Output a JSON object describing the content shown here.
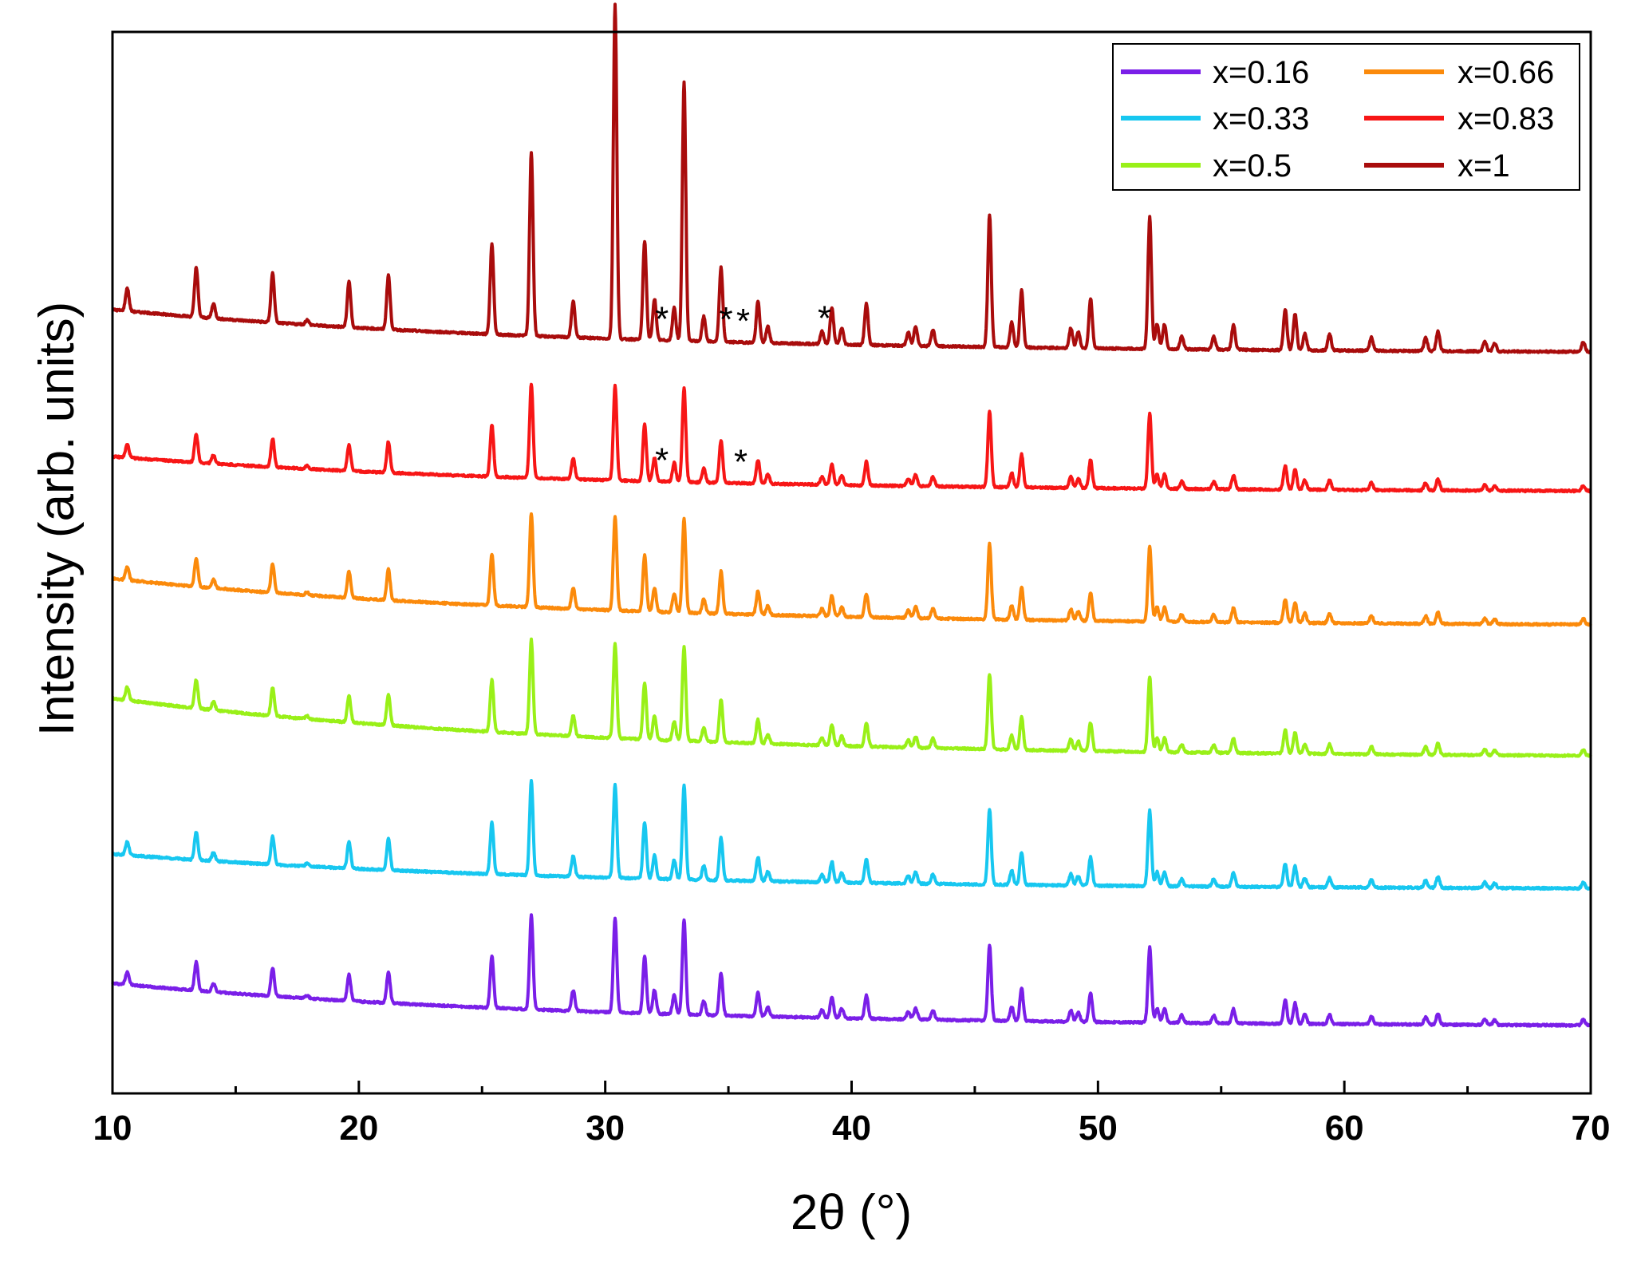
{
  "chart_data": {
    "type": "line",
    "title": "",
    "xlabel": "2θ (°)",
    "ylabel": "Intensity (arb. units)",
    "xlim": [
      10,
      70
    ],
    "xticks": [
      10,
      20,
      30,
      40,
      50,
      60,
      70
    ],
    "xtick_labels": [
      "10",
      "20",
      "30",
      "40",
      "50",
      "60",
      "70"
    ],
    "legend_position": "top-right",
    "peaks": [
      {
        "x": 10.6,
        "h": 0.14
      },
      {
        "x": 13.4,
        "h": 0.3
      },
      {
        "x": 14.1,
        "h": 0.09
      },
      {
        "x": 16.5,
        "h": 0.3
      },
      {
        "x": 17.9,
        "h": 0.03
      },
      {
        "x": 19.6,
        "h": 0.28
      },
      {
        "x": 21.2,
        "h": 0.33
      },
      {
        "x": 25.4,
        "h": 0.55
      },
      {
        "x": 27.0,
        "h": 1.0
      },
      {
        "x": 28.7,
        "h": 0.22
      },
      {
        "x": 30.4,
        "h": 1.0
      },
      {
        "x": 31.6,
        "h": 0.6
      },
      {
        "x": 32.0,
        "h": 0.25
      },
      {
        "x": 32.8,
        "h": 0.2
      },
      {
        "x": 33.2,
        "h": 1.0
      },
      {
        "x": 34.0,
        "h": 0.15
      },
      {
        "x": 34.7,
        "h": 0.45
      },
      {
        "x": 36.2,
        "h": 0.25
      },
      {
        "x": 36.6,
        "h": 0.1
      },
      {
        "x": 38.8,
        "h": 0.08
      },
      {
        "x": 39.2,
        "h": 0.22
      },
      {
        "x": 39.6,
        "h": 0.1
      },
      {
        "x": 40.6,
        "h": 0.25
      },
      {
        "x": 42.3,
        "h": 0.08
      },
      {
        "x": 42.6,
        "h": 0.12
      },
      {
        "x": 43.3,
        "h": 0.1
      },
      {
        "x": 45.6,
        "h": 0.8
      },
      {
        "x": 46.5,
        "h": 0.15
      },
      {
        "x": 46.9,
        "h": 0.35
      },
      {
        "x": 48.9,
        "h": 0.12
      },
      {
        "x": 49.2,
        "h": 0.1
      },
      {
        "x": 49.7,
        "h": 0.3
      },
      {
        "x": 52.1,
        "h": 0.8
      },
      {
        "x": 52.4,
        "h": 0.15
      },
      {
        "x": 52.7,
        "h": 0.15
      },
      {
        "x": 53.4,
        "h": 0.08
      },
      {
        "x": 54.7,
        "h": 0.08
      },
      {
        "x": 55.5,
        "h": 0.15
      },
      {
        "x": 57.6,
        "h": 0.25
      },
      {
        "x": 58.0,
        "h": 0.22
      },
      {
        "x": 58.4,
        "h": 0.1
      },
      {
        "x": 59.4,
        "h": 0.1
      },
      {
        "x": 61.1,
        "h": 0.08
      },
      {
        "x": 63.3,
        "h": 0.08
      },
      {
        "x": 63.8,
        "h": 0.12
      },
      {
        "x": 65.7,
        "h": 0.06
      },
      {
        "x": 66.1,
        "h": 0.05
      },
      {
        "x": 69.7,
        "h": 0.06
      }
    ],
    "series": [
      {
        "name": "x=0.16",
        "color": "#7a1fe8",
        "offset": 0.0,
        "scale": 1.0,
        "max_y": 1.0
      },
      {
        "name": "x=0.33",
        "color": "#17c7f0",
        "offset": 1.0,
        "scale": 1.0,
        "max_y": 1.0
      },
      {
        "name": "x=0.5",
        "color": "#99f018",
        "offset": 2.0,
        "scale": 1.0,
        "max_y": 1.0
      },
      {
        "name": "x=0.66",
        "color": "#fb8a0b",
        "offset": 3.0,
        "scale": 1.0,
        "max_y": 1.0
      },
      {
        "name": "x=0.83",
        "color": "#f71616",
        "offset": 4.0,
        "scale": 1.0,
        "max_y": 1.0
      },
      {
        "name": "x=1",
        "color": "#a90c0c",
        "offset": 5.0,
        "scale": 1.75,
        "max_y": 3.55
      }
    ],
    "annotations": [
      {
        "text": "*",
        "x": 32.3,
        "series": "x=1"
      },
      {
        "text": "*",
        "x": 34.9,
        "series": "x=1"
      },
      {
        "text": "*",
        "x": 35.6,
        "series": "x=1"
      },
      {
        "text": "*",
        "x": 38.9,
        "series": "x=1"
      },
      {
        "text": "*",
        "x": 32.3,
        "series": "x=0.83"
      },
      {
        "text": "*",
        "x": 35.5,
        "series": "x=0.83"
      }
    ]
  }
}
